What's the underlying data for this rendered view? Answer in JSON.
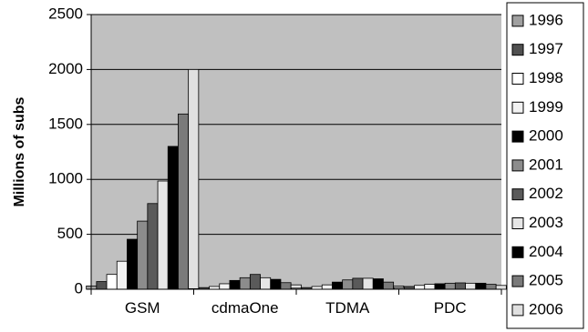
{
  "chart_data": {
    "type": "bar",
    "ylabel": "Millions of subs",
    "xlabel": "",
    "ylim": [
      0,
      2500
    ],
    "yticks": [
      "0",
      "500",
      "1000",
      "1500",
      "2000",
      "2500"
    ],
    "grid": true,
    "legend_position": "right",
    "categories": [
      "GSM",
      "cdmaOne",
      "TDMA",
      "PDC"
    ],
    "series": [
      {
        "name": "1996",
        "color": "#a0a0a0",
        "values": [
          30,
          5,
          10,
          15
        ]
      },
      {
        "name": "1997",
        "color": "#505050",
        "values": [
          70,
          15,
          15,
          25
        ]
      },
      {
        "name": "1998",
        "color": "#ffffff",
        "values": [
          135,
          25,
          25,
          35
        ]
      },
      {
        "name": "1999",
        "color": "#f2f2f2",
        "values": [
          255,
          50,
          40,
          45
        ]
      },
      {
        "name": "2000",
        "color": "#000000",
        "values": [
          455,
          80,
          65,
          50
        ]
      },
      {
        "name": "2001",
        "color": "#8c8c8c",
        "values": [
          620,
          105,
          85,
          55
        ]
      },
      {
        "name": "2002",
        "color": "#5a5a5a",
        "values": [
          780,
          135,
          100,
          58
        ]
      },
      {
        "name": "2003",
        "color": "#e6e6e6",
        "values": [
          985,
          105,
          100,
          55
        ]
      },
      {
        "name": "2004",
        "color": "#000000",
        "values": [
          1300,
          90,
          95,
          55
        ]
      },
      {
        "name": "2005",
        "color": "#7a7a7a",
        "values": [
          1595,
          60,
          65,
          45
        ]
      },
      {
        "name": "2006",
        "color": "#e0e0e0",
        "values": [
          2000,
          40,
          30,
          35
        ]
      }
    ]
  }
}
